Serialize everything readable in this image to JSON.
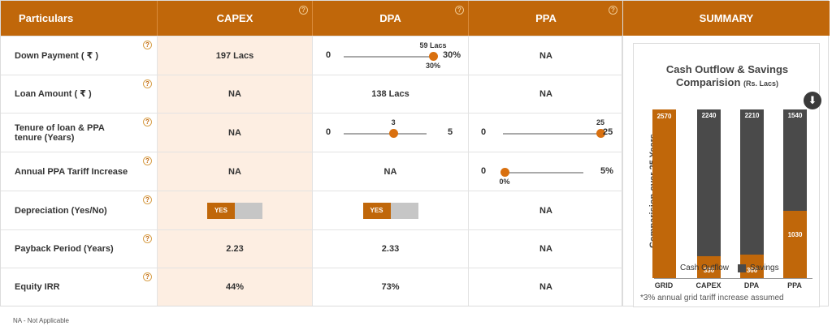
{
  "headers": {
    "particulars": "Particulars",
    "capex": "CAPEX",
    "dpa": "DPA",
    "ppa": "PPA",
    "summary": "SUMMARY"
  },
  "help_glyph": "?",
  "rows": [
    {
      "label": "Down Payment ( ₹ )",
      "capex": "197 Lacs",
      "ppa": "NA",
      "dpa_slider": {
        "min": "0",
        "max": "30%",
        "value_top": "59 Lacs",
        "value_bottom": "30%",
        "fraction": 1.0
      }
    },
    {
      "label": "Loan Amount ( ₹ )",
      "capex": "NA",
      "dpa": "138 Lacs",
      "ppa": "NA"
    },
    {
      "label": "Tenure of loan & PPA tenure (Years)",
      "capex": "NA",
      "dpa_slider": {
        "min": "0",
        "max": "5",
        "value_top": "3",
        "fraction": 0.6
      },
      "ppa_slider": {
        "min": "0",
        "max": "25",
        "value_top": "25",
        "fraction": 1.0
      }
    },
    {
      "label": "Annual PPA Tariff Increase",
      "capex": "NA",
      "dpa": "NA",
      "ppa_slider": {
        "min": "0",
        "max": "5%",
        "value_bottom": "0%",
        "fraction": 0.0
      }
    },
    {
      "label": "Depreciation (Yes/No)",
      "capex_toggle": "YES",
      "dpa_toggle": "YES",
      "ppa": "NA"
    },
    {
      "label": "Payback Period (Years)",
      "capex": "2.23",
      "dpa": "2.33",
      "ppa": "NA"
    },
    {
      "label": "Equity IRR",
      "capex": "44%",
      "dpa": "73%",
      "ppa": "NA"
    }
  ],
  "footnote": "NA - Not Applicable",
  "summary": {
    "title": "Cash Outflow & Savings",
    "title2": "Comparision",
    "title_unit": "(Rs. Lacs)",
    "footnote": "*3% annual grid tariff increase assumed"
  },
  "colors": {
    "accent": "#c0670a",
    "savings": "#4a4a4a",
    "capex_bg": "#fdeee2"
  },
  "chart_data": {
    "type": "bar",
    "stacked": true,
    "title": "Cash Outflow & Savings Comparision (Rs. Lacs)",
    "ylabel": "Comparision over 25 Years",
    "categories": [
      "GRID",
      "CAPEX",
      "DPA",
      "PPA"
    ],
    "series": [
      {
        "name": "Cash Outflow",
        "color": "#c0670a",
        "values": [
          2570,
          330,
          360,
          1030
        ]
      },
      {
        "name": "Savings",
        "color": "#4a4a4a",
        "values": [
          null,
          2240,
          2210,
          1540
        ]
      }
    ],
    "data_labels": {
      "Cash Outflow": [
        "2570",
        "330",
        "360",
        "1030"
      ],
      "Savings": [
        "",
        "2240",
        "2210",
        "1540"
      ]
    },
    "ylim": [
      0,
      2570
    ],
    "legend": "bottom",
    "grid": false
  }
}
